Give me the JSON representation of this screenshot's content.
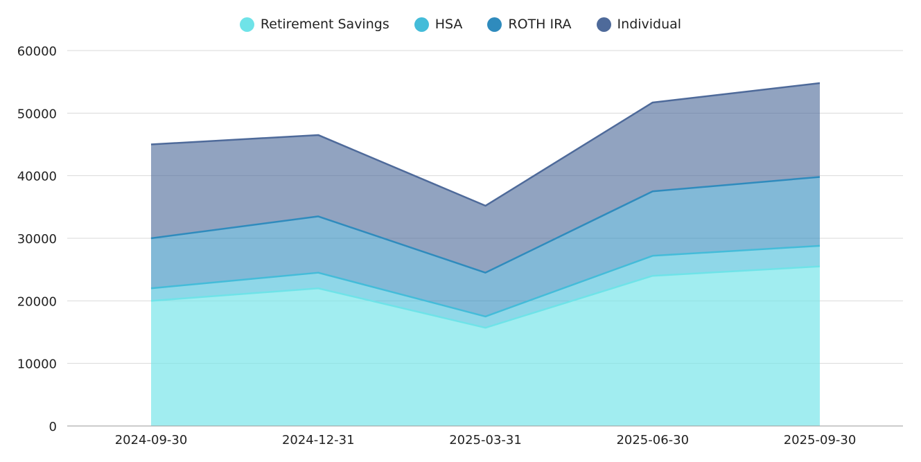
{
  "chart_data": {
    "type": "area",
    "stacked": true,
    "title": "",
    "xlabel": "",
    "ylabel": "",
    "categories": [
      "2024-09-30",
      "2024-12-31",
      "2025-03-31",
      "2025-06-30",
      "2025-09-30"
    ],
    "y_ticks": [
      "0",
      "10000",
      "20000",
      "30000",
      "40000",
      "50000",
      "60000"
    ],
    "ylim": [
      0,
      60000
    ],
    "grid": true,
    "legend_position": "top-center",
    "series": [
      {
        "name": "Retirement Savings",
        "color": "#6fe3e8",
        "values": [
          20000,
          22000,
          15700,
          24000,
          25500
        ]
      },
      {
        "name": "HSA",
        "color": "#44bcd9",
        "values": [
          2000,
          2500,
          1800,
          3200,
          3300
        ]
      },
      {
        "name": "ROTH IRA",
        "color": "#2f8bbd",
        "values": [
          8000,
          9000,
          7000,
          10300,
          11000
        ]
      },
      {
        "name": "Individual",
        "color": "#4e6a9a",
        "values": [
          15000,
          13000,
          10700,
          14200,
          15000
        ]
      }
    ]
  }
}
